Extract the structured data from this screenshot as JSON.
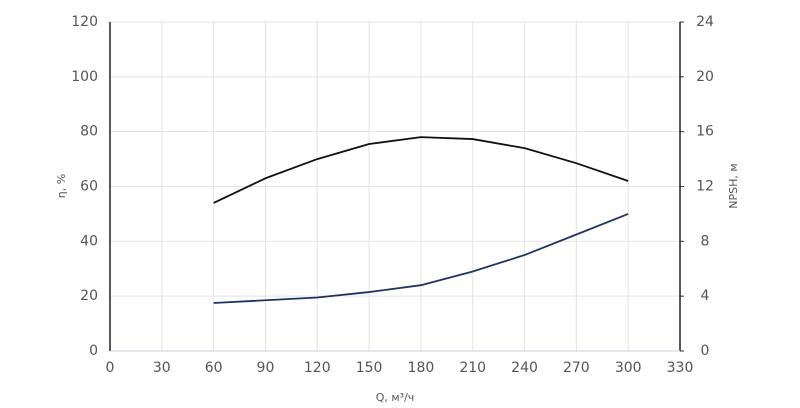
{
  "chart_data": {
    "type": "line",
    "x_label": "Q, м³/ч",
    "y_label": "η, %",
    "y2_label": "NPSH, м",
    "x": [
      60,
      90,
      120,
      150,
      180,
      210,
      240,
      270,
      300
    ],
    "series": [
      {
        "color": "#111111",
        "values": [
          54,
          63,
          70,
          75.5,
          78,
          77.3,
          74,
          68.5,
          62
        ]
      },
      {
        "color": "#1f3466",
        "axis": "y2",
        "values": [
          3.5,
          3.7,
          3.9,
          4.3,
          4.8,
          5.8,
          7.0,
          8.5,
          10
        ]
      }
    ],
    "xlim": [
      0,
      330
    ],
    "xticks": [
      0,
      30,
      60,
      90,
      120,
      150,
      180,
      210,
      240,
      270,
      300,
      330
    ],
    "ylim": [
      0,
      120
    ],
    "yticks": [
      0,
      20,
      40,
      60,
      80,
      100,
      120
    ],
    "y2lim": [
      0,
      24
    ],
    "y2ticks": [
      0,
      4,
      8,
      12,
      16,
      20,
      24
    ],
    "grid": true
  }
}
